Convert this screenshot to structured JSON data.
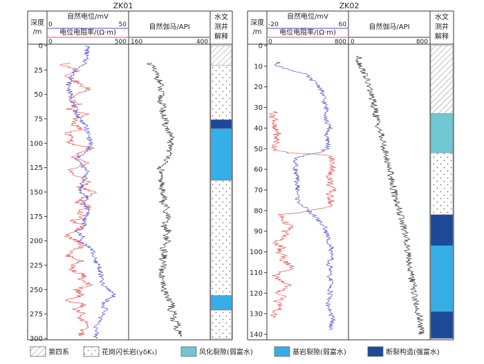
{
  "colors": {
    "sp": "#4a4ad8",
    "res": "#e8504a",
    "gamma": "#333333",
    "weathered": "#6fc7d4",
    "bedrock": "#36aee8",
    "fault": "#1c4a98",
    "granite_bg": "#ffffff",
    "quaternary_hatch": "#999999"
  },
  "chart_data": [
    {
      "type": "line",
      "title": "ZK01",
      "depth_label_line1": "深度",
      "depth_label_line2": "/m",
      "depth_ylim": [
        0,
        300
      ],
      "depth_ticks": [
        0,
        25,
        50,
        75,
        100,
        125,
        150,
        175,
        200,
        225,
        250,
        275,
        300
      ],
      "sp": {
        "label": "自然电位/mV",
        "range": [
          0,
          50
        ],
        "tick_left": "0",
        "tick_right": "50"
      },
      "res": {
        "label": "电位电阻率/(Ω·m)",
        "range": [
          0,
          500
        ],
        "tick_left": "0",
        "tick_right": "500"
      },
      "gamma": {
        "label": "自然伽马/API",
        "range": [
          160,
          400
        ],
        "tick_left": "160",
        "tick_right": "400"
      },
      "interp_label": [
        "水文",
        "测井",
        "解释"
      ],
      "intervals": [
        {
          "from": 0,
          "to": 20,
          "type": "quaternary"
        },
        {
          "from": 20,
          "to": 76,
          "type": "granite"
        },
        {
          "from": 76,
          "to": 85,
          "type": "fault"
        },
        {
          "from": 85,
          "to": 138,
          "type": "bedrock"
        },
        {
          "from": 138,
          "to": 256,
          "type": "granite"
        },
        {
          "from": 256,
          "to": 271,
          "type": "bedrock"
        },
        {
          "from": 271,
          "to": 300,
          "type": "granite"
        }
      ],
      "sp_series": [
        [
          0,
          25
        ],
        [
          20,
          23
        ],
        [
          25,
          17
        ],
        [
          30,
          16
        ],
        [
          40,
          13
        ],
        [
          50,
          14
        ],
        [
          60,
          16
        ],
        [
          70,
          18
        ],
        [
          75,
          20
        ],
        [
          80,
          23
        ],
        [
          90,
          25
        ],
        [
          100,
          27
        ],
        [
          110,
          23
        ],
        [
          115,
          18
        ],
        [
          120,
          20
        ],
        [
          130,
          25
        ],
        [
          140,
          22
        ],
        [
          150,
          20
        ],
        [
          155,
          25
        ],
        [
          160,
          22
        ],
        [
          170,
          26
        ],
        [
          180,
          22
        ],
        [
          185,
          24
        ],
        [
          190,
          17
        ],
        [
          195,
          22
        ],
        [
          200,
          20
        ],
        [
          205,
          25
        ],
        [
          210,
          28
        ],
        [
          220,
          29
        ],
        [
          225,
          32
        ],
        [
          235,
          33
        ],
        [
          245,
          34
        ],
        [
          250,
          38
        ],
        [
          255,
          42
        ],
        [
          260,
          38
        ],
        [
          265,
          34
        ],
        [
          270,
          36
        ],
        [
          280,
          33
        ],
        [
          290,
          30
        ],
        [
          300,
          30
        ]
      ],
      "res_series": [
        [
          18,
          150
        ],
        [
          20,
          60
        ],
        [
          22,
          130
        ],
        [
          25,
          190
        ],
        [
          28,
          170
        ],
        [
          30,
          120
        ],
        [
          35,
          160
        ],
        [
          40,
          200
        ],
        [
          45,
          260
        ],
        [
          50,
          190
        ],
        [
          55,
          140
        ],
        [
          60,
          190
        ],
        [
          65,
          120
        ],
        [
          70,
          240
        ],
        [
          75,
          180
        ],
        [
          80,
          150
        ],
        [
          85,
          210
        ],
        [
          90,
          120
        ],
        [
          95,
          160
        ],
        [
          100,
          130
        ],
        [
          105,
          280
        ],
        [
          110,
          180
        ],
        [
          115,
          150
        ],
        [
          120,
          250
        ],
        [
          125,
          160
        ],
        [
          130,
          140
        ],
        [
          135,
          200
        ],
        [
          140,
          260
        ],
        [
          145,
          200
        ],
        [
          150,
          300
        ],
        [
          155,
          240
        ],
        [
          160,
          180
        ],
        [
          165,
          260
        ],
        [
          170,
          200
        ],
        [
          175,
          220
        ],
        [
          180,
          150
        ],
        [
          185,
          220
        ],
        [
          190,
          180
        ],
        [
          195,
          120
        ],
        [
          200,
          180
        ],
        [
          205,
          230
        ],
        [
          210,
          160
        ],
        [
          215,
          120
        ],
        [
          220,
          210
        ],
        [
          225,
          160
        ],
        [
          230,
          150
        ],
        [
          235,
          230
        ],
        [
          240,
          200
        ],
        [
          245,
          260
        ],
        [
          250,
          180
        ],
        [
          255,
          220
        ],
        [
          260,
          130
        ],
        [
          262,
          120
        ],
        [
          265,
          230
        ],
        [
          270,
          170
        ],
        [
          275,
          220
        ],
        [
          280,
          200
        ],
        [
          285,
          260
        ],
        [
          290,
          220
        ],
        [
          295,
          210
        ],
        [
          298,
          200
        ]
      ],
      "gamma_series": [
        [
          18,
          222
        ],
        [
          20,
          225
        ],
        [
          25,
          232
        ],
        [
          30,
          242
        ],
        [
          35,
          248
        ],
        [
          40,
          254
        ],
        [
          45,
          250
        ],
        [
          50,
          256
        ],
        [
          55,
          252
        ],
        [
          60,
          258
        ],
        [
          65,
          262
        ],
        [
          70,
          258
        ],
        [
          75,
          268
        ],
        [
          80,
          266
        ],
        [
          85,
          274
        ],
        [
          90,
          280
        ],
        [
          95,
          284
        ],
        [
          100,
          282
        ],
        [
          105,
          286
        ],
        [
          110,
          278
        ],
        [
          115,
          282
        ],
        [
          120,
          262
        ],
        [
          125,
          252
        ],
        [
          130,
          256
        ],
        [
          135,
          250
        ],
        [
          140,
          258
        ],
        [
          145,
          254
        ],
        [
          150,
          262
        ],
        [
          155,
          268
        ],
        [
          160,
          256
        ],
        [
          165,
          272
        ],
        [
          170,
          264
        ],
        [
          175,
          276
        ],
        [
          180,
          268
        ],
        [
          185,
          262
        ],
        [
          190,
          278
        ],
        [
          195,
          270
        ],
        [
          200,
          274
        ],
        [
          205,
          264
        ],
        [
          210,
          262
        ],
        [
          215,
          266
        ],
        [
          220,
          258
        ],
        [
          225,
          262
        ],
        [
          230,
          254
        ],
        [
          235,
          258
        ],
        [
          240,
          252
        ],
        [
          245,
          260
        ],
        [
          250,
          262
        ],
        [
          255,
          272
        ],
        [
          260,
          278
        ],
        [
          265,
          290
        ],
        [
          270,
          282
        ],
        [
          275,
          300
        ],
        [
          280,
          288
        ],
        [
          285,
          306
        ],
        [
          290,
          300
        ],
        [
          295,
          316
        ],
        [
          298,
          312
        ]
      ]
    },
    {
      "type": "line",
      "title": "ZK02",
      "depth_label_line1": "深度",
      "depth_label_line2": "/m",
      "depth_ylim": [
        0,
        142
      ],
      "depth_ticks": [
        0,
        10,
        20,
        30,
        40,
        50,
        60,
        70,
        80,
        90,
        100,
        110,
        120,
        130,
        140
      ],
      "sp": {
        "label": "自然电位/mV",
        "range": [
          -20,
          60
        ],
        "tick_left": "-20",
        "tick_right": "60"
      },
      "res": {
        "label": "电位电阻率/(Ω·m)",
        "range": [
          0,
          800
        ],
        "tick_left": "0",
        "tick_right": "800"
      },
      "gamma": {
        "label": "自然伽马/API",
        "range": [
          0,
          800
        ],
        "tick_left": "0",
        "tick_right": "800"
      },
      "interp_label": [
        "水文",
        "测井",
        "解释"
      ],
      "intervals": [
        {
          "from": 0,
          "to": 33,
          "type": "quaternary"
        },
        {
          "from": 33,
          "to": 52,
          "type": "weathered"
        },
        {
          "from": 52,
          "to": 82,
          "type": "granite"
        },
        {
          "from": 82,
          "to": 97,
          "type": "fault"
        },
        {
          "from": 97,
          "to": 129,
          "type": "bedrock"
        },
        {
          "from": 129,
          "to": 142,
          "type": "fault"
        }
      ],
      "sp_series": [
        [
          8,
          -10
        ],
        [
          10,
          -10
        ],
        [
          12,
          5
        ],
        [
          14,
          18
        ],
        [
          16,
          22
        ],
        [
          18,
          28
        ],
        [
          20,
          32
        ],
        [
          22,
          34
        ],
        [
          26,
          36
        ],
        [
          30,
          38
        ],
        [
          32,
          40
        ],
        [
          36,
          38
        ],
        [
          40,
          42
        ],
        [
          44,
          38
        ],
        [
          48,
          41
        ],
        [
          50,
          39
        ],
        [
          52,
          30
        ],
        [
          53,
          20
        ],
        [
          54,
          10
        ],
        [
          55,
          8
        ],
        [
          60,
          8
        ],
        [
          65,
          9
        ],
        [
          70,
          10
        ],
        [
          75,
          10
        ],
        [
          80,
          20
        ],
        [
          83,
          28
        ],
        [
          86,
          33
        ],
        [
          88,
          37
        ],
        [
          90,
          38
        ],
        [
          93,
          40
        ],
        [
          96,
          42
        ],
        [
          98,
          44
        ],
        [
          100,
          42
        ],
        [
          103,
          44
        ],
        [
          106,
          40
        ],
        [
          108,
          43
        ],
        [
          110,
          41
        ],
        [
          114,
          43
        ],
        [
          118,
          43
        ],
        [
          122,
          42
        ],
        [
          126,
          40
        ],
        [
          130,
          43
        ],
        [
          133,
          45
        ],
        [
          136,
          43
        ],
        [
          138,
          42
        ]
      ],
      "res_series": [
        [
          32,
          80
        ],
        [
          34,
          40
        ],
        [
          36,
          90
        ],
        [
          38,
          60
        ],
        [
          40,
          50
        ],
        [
          42,
          110
        ],
        [
          44,
          80
        ],
        [
          46,
          100
        ],
        [
          48,
          70
        ],
        [
          50,
          80
        ],
        [
          51,
          100
        ],
        [
          52,
          200
        ],
        [
          52.5,
          420
        ],
        [
          53,
          600
        ],
        [
          55,
          640
        ],
        [
          58,
          650
        ],
        [
          60,
          660
        ],
        [
          62,
          610
        ],
        [
          65,
          630
        ],
        [
          68,
          620
        ],
        [
          70,
          660
        ],
        [
          72,
          610
        ],
        [
          75,
          640
        ],
        [
          78,
          610
        ],
        [
          80,
          450
        ],
        [
          81,
          300
        ],
        [
          82,
          120
        ],
        [
          84,
          150
        ],
        [
          86,
          180
        ],
        [
          88,
          240
        ],
        [
          90,
          170
        ],
        [
          92,
          180
        ],
        [
          94,
          120
        ],
        [
          96,
          80
        ],
        [
          98,
          140
        ],
        [
          100,
          100
        ],
        [
          102,
          180
        ],
        [
          104,
          140
        ],
        [
          106,
          210
        ],
        [
          108,
          250
        ],
        [
          110,
          100
        ],
        [
          112,
          80
        ],
        [
          114,
          140
        ],
        [
          116,
          220
        ],
        [
          118,
          150
        ],
        [
          120,
          100
        ],
        [
          122,
          190
        ],
        [
          124,
          90
        ],
        [
          126,
          130
        ],
        [
          128,
          110
        ],
        [
          130,
          50
        ],
        [
          132,
          70
        ]
      ],
      "gamma_series": [
        [
          5,
          90
        ],
        [
          8,
          100
        ],
        [
          10,
          120
        ],
        [
          12,
          140
        ],
        [
          14,
          160
        ],
        [
          16,
          170
        ],
        [
          18,
          180
        ],
        [
          20,
          200
        ],
        [
          24,
          220
        ],
        [
          28,
          240
        ],
        [
          32,
          260
        ],
        [
          36,
          280
        ],
        [
          40,
          300
        ],
        [
          44,
          320
        ],
        [
          48,
          340
        ],
        [
          52,
          360
        ],
        [
          56,
          380
        ],
        [
          60,
          410
        ],
        [
          64,
          420
        ],
        [
          68,
          440
        ],
        [
          72,
          450
        ],
        [
          76,
          480
        ],
        [
          80,
          500
        ],
        [
          84,
          520
        ],
        [
          88,
          540
        ],
        [
          92,
          560
        ],
        [
          96,
          580
        ],
        [
          100,
          590
        ],
        [
          104,
          600
        ],
        [
          108,
          610
        ],
        [
          112,
          620
        ],
        [
          116,
          640
        ],
        [
          120,
          650
        ],
        [
          124,
          660
        ],
        [
          128,
          680
        ],
        [
          132,
          700
        ],
        [
          136,
          710
        ],
        [
          140,
          720
        ]
      ]
    }
  ],
  "legend": [
    {
      "key": "quaternary",
      "label": "第四系"
    },
    {
      "key": "granite",
      "label": "花岗闪长岩(γδK₁)"
    },
    {
      "key": "weathered",
      "label": "风化裂隙(弱富水)"
    },
    {
      "key": "bedrock",
      "label": "基岩裂隙(弱富水)"
    },
    {
      "key": "fault",
      "label": "断裂构造(强富水)"
    }
  ]
}
